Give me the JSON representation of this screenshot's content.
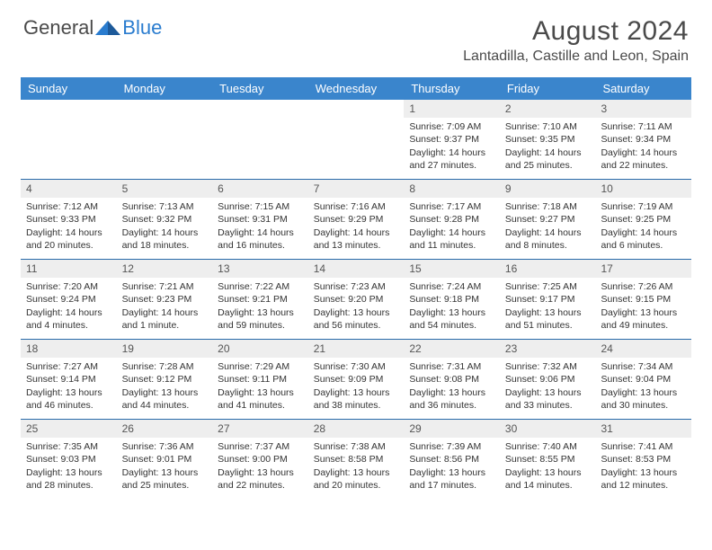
{
  "logo": {
    "text_gray": "General",
    "text_blue": "Blue"
  },
  "title": "August 2024",
  "location": "Lantadilla, Castille and Leon, Spain",
  "colors": {
    "header_bg": "#3a85cc",
    "header_text": "#ffffff",
    "daynum_bg": "#eeeeee",
    "divider": "#2a6baa",
    "text": "#333333",
    "accent_blue": "#2a7ccf"
  },
  "day_names": [
    "Sunday",
    "Monday",
    "Tuesday",
    "Wednesday",
    "Thursday",
    "Friday",
    "Saturday"
  ],
  "weeks": [
    [
      {
        "n": "",
        "sr": "",
        "ss": "",
        "dl": ""
      },
      {
        "n": "",
        "sr": "",
        "ss": "",
        "dl": ""
      },
      {
        "n": "",
        "sr": "",
        "ss": "",
        "dl": ""
      },
      {
        "n": "",
        "sr": "",
        "ss": "",
        "dl": ""
      },
      {
        "n": "1",
        "sr": "Sunrise: 7:09 AM",
        "ss": "Sunset: 9:37 PM",
        "dl": "Daylight: 14 hours and 27 minutes."
      },
      {
        "n": "2",
        "sr": "Sunrise: 7:10 AM",
        "ss": "Sunset: 9:35 PM",
        "dl": "Daylight: 14 hours and 25 minutes."
      },
      {
        "n": "3",
        "sr": "Sunrise: 7:11 AM",
        "ss": "Sunset: 9:34 PM",
        "dl": "Daylight: 14 hours and 22 minutes."
      }
    ],
    [
      {
        "n": "4",
        "sr": "Sunrise: 7:12 AM",
        "ss": "Sunset: 9:33 PM",
        "dl": "Daylight: 14 hours and 20 minutes."
      },
      {
        "n": "5",
        "sr": "Sunrise: 7:13 AM",
        "ss": "Sunset: 9:32 PM",
        "dl": "Daylight: 14 hours and 18 minutes."
      },
      {
        "n": "6",
        "sr": "Sunrise: 7:15 AM",
        "ss": "Sunset: 9:31 PM",
        "dl": "Daylight: 14 hours and 16 minutes."
      },
      {
        "n": "7",
        "sr": "Sunrise: 7:16 AM",
        "ss": "Sunset: 9:29 PM",
        "dl": "Daylight: 14 hours and 13 minutes."
      },
      {
        "n": "8",
        "sr": "Sunrise: 7:17 AM",
        "ss": "Sunset: 9:28 PM",
        "dl": "Daylight: 14 hours and 11 minutes."
      },
      {
        "n": "9",
        "sr": "Sunrise: 7:18 AM",
        "ss": "Sunset: 9:27 PM",
        "dl": "Daylight: 14 hours and 8 minutes."
      },
      {
        "n": "10",
        "sr": "Sunrise: 7:19 AM",
        "ss": "Sunset: 9:25 PM",
        "dl": "Daylight: 14 hours and 6 minutes."
      }
    ],
    [
      {
        "n": "11",
        "sr": "Sunrise: 7:20 AM",
        "ss": "Sunset: 9:24 PM",
        "dl": "Daylight: 14 hours and 4 minutes."
      },
      {
        "n": "12",
        "sr": "Sunrise: 7:21 AM",
        "ss": "Sunset: 9:23 PM",
        "dl": "Daylight: 14 hours and 1 minute."
      },
      {
        "n": "13",
        "sr": "Sunrise: 7:22 AM",
        "ss": "Sunset: 9:21 PM",
        "dl": "Daylight: 13 hours and 59 minutes."
      },
      {
        "n": "14",
        "sr": "Sunrise: 7:23 AM",
        "ss": "Sunset: 9:20 PM",
        "dl": "Daylight: 13 hours and 56 minutes."
      },
      {
        "n": "15",
        "sr": "Sunrise: 7:24 AM",
        "ss": "Sunset: 9:18 PM",
        "dl": "Daylight: 13 hours and 54 minutes."
      },
      {
        "n": "16",
        "sr": "Sunrise: 7:25 AM",
        "ss": "Sunset: 9:17 PM",
        "dl": "Daylight: 13 hours and 51 minutes."
      },
      {
        "n": "17",
        "sr": "Sunrise: 7:26 AM",
        "ss": "Sunset: 9:15 PM",
        "dl": "Daylight: 13 hours and 49 minutes."
      }
    ],
    [
      {
        "n": "18",
        "sr": "Sunrise: 7:27 AM",
        "ss": "Sunset: 9:14 PM",
        "dl": "Daylight: 13 hours and 46 minutes."
      },
      {
        "n": "19",
        "sr": "Sunrise: 7:28 AM",
        "ss": "Sunset: 9:12 PM",
        "dl": "Daylight: 13 hours and 44 minutes."
      },
      {
        "n": "20",
        "sr": "Sunrise: 7:29 AM",
        "ss": "Sunset: 9:11 PM",
        "dl": "Daylight: 13 hours and 41 minutes."
      },
      {
        "n": "21",
        "sr": "Sunrise: 7:30 AM",
        "ss": "Sunset: 9:09 PM",
        "dl": "Daylight: 13 hours and 38 minutes."
      },
      {
        "n": "22",
        "sr": "Sunrise: 7:31 AM",
        "ss": "Sunset: 9:08 PM",
        "dl": "Daylight: 13 hours and 36 minutes."
      },
      {
        "n": "23",
        "sr": "Sunrise: 7:32 AM",
        "ss": "Sunset: 9:06 PM",
        "dl": "Daylight: 13 hours and 33 minutes."
      },
      {
        "n": "24",
        "sr": "Sunrise: 7:34 AM",
        "ss": "Sunset: 9:04 PM",
        "dl": "Daylight: 13 hours and 30 minutes."
      }
    ],
    [
      {
        "n": "25",
        "sr": "Sunrise: 7:35 AM",
        "ss": "Sunset: 9:03 PM",
        "dl": "Daylight: 13 hours and 28 minutes."
      },
      {
        "n": "26",
        "sr": "Sunrise: 7:36 AM",
        "ss": "Sunset: 9:01 PM",
        "dl": "Daylight: 13 hours and 25 minutes."
      },
      {
        "n": "27",
        "sr": "Sunrise: 7:37 AM",
        "ss": "Sunset: 9:00 PM",
        "dl": "Daylight: 13 hours and 22 minutes."
      },
      {
        "n": "28",
        "sr": "Sunrise: 7:38 AM",
        "ss": "Sunset: 8:58 PM",
        "dl": "Daylight: 13 hours and 20 minutes."
      },
      {
        "n": "29",
        "sr": "Sunrise: 7:39 AM",
        "ss": "Sunset: 8:56 PM",
        "dl": "Daylight: 13 hours and 17 minutes."
      },
      {
        "n": "30",
        "sr": "Sunrise: 7:40 AM",
        "ss": "Sunset: 8:55 PM",
        "dl": "Daylight: 13 hours and 14 minutes."
      },
      {
        "n": "31",
        "sr": "Sunrise: 7:41 AM",
        "ss": "Sunset: 8:53 PM",
        "dl": "Daylight: 13 hours and 12 minutes."
      }
    ]
  ]
}
